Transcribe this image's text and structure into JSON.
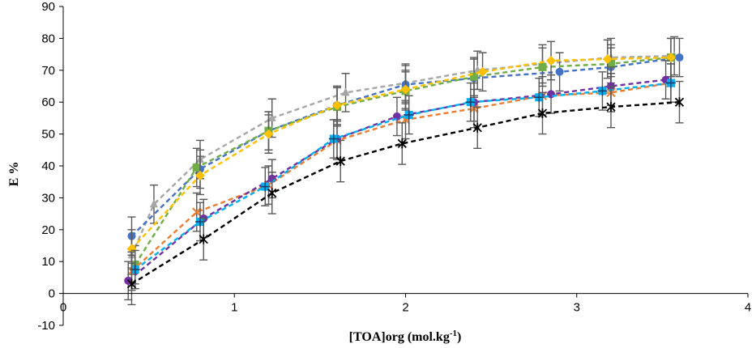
{
  "chart_data": {
    "type": "scatter",
    "xlabel": "[TOA]org (mol.kg",
    "xlabel_sup": "-1",
    "xlabel_close": ")",
    "ylabel": "E %",
    "xlim": [
      0,
      4
    ],
    "ylim": [
      -10,
      90
    ],
    "xticks": [
      0,
      1,
      2,
      3,
      4
    ],
    "yticks": [
      -10,
      0,
      10,
      20,
      30,
      40,
      50,
      60,
      70,
      80,
      90
    ],
    "grid": false,
    "legend": "none",
    "error_bar_color": "#595959",
    "series": [
      {
        "color": "#a6a6a6",
        "marker": "triangle",
        "x": [
          0.4,
          0.53,
          0.8,
          1.22,
          1.65,
          2.0,
          2.42,
          2.8,
          3.2,
          3.57
        ],
        "y": [
          12,
          28,
          42,
          55,
          63,
          66,
          70,
          72,
          74,
          74.5
        ],
        "err": 6
      },
      {
        "color": "#4472c4",
        "marker": "circle",
        "x": [
          0.4,
          0.8,
          1.2,
          1.6,
          2.0,
          2.4,
          2.9,
          3.2,
          3.6
        ],
        "y": [
          18,
          39,
          51,
          59,
          65.5,
          67.5,
          69.5,
          71,
          74
        ],
        "err": 6
      },
      {
        "color": "#70ad47",
        "marker": "square",
        "x": [
          0.42,
          0.78,
          1.2,
          1.6,
          2.0,
          2.4,
          2.8,
          3.2,
          3.55
        ],
        "y": [
          9,
          39.5,
          51,
          58.5,
          63.5,
          68,
          71,
          72,
          74
        ],
        "err": 6
      },
      {
        "color": "#ffc000",
        "marker": "diamond",
        "x": [
          0.4,
          0.8,
          1.2,
          1.6,
          2.0,
          2.45,
          2.85,
          3.18,
          3.55
        ],
        "y": [
          14,
          37,
          50,
          59,
          64,
          69.5,
          73,
          73.5,
          74
        ],
        "err": 6
      },
      {
        "color": "#ed7d31",
        "marker": "x",
        "x": [
          0.4,
          0.78,
          1.2,
          1.6,
          2.0,
          2.4,
          2.8,
          3.2,
          3.55
        ],
        "y": [
          7,
          25.5,
          34,
          48,
          54.5,
          58,
          62,
          63,
          66
        ],
        "err": 6
      },
      {
        "color": "#7030a0",
        "marker": "circle",
        "x": [
          0.38,
          0.82,
          1.22,
          1.6,
          1.95,
          2.4,
          2.85,
          3.2,
          3.52
        ],
        "y": [
          4,
          23.5,
          36,
          48.5,
          55.5,
          60,
          62.5,
          65,
          67
        ],
        "err": 6
      },
      {
        "color": "#00b0f0",
        "marker": "square-plus",
        "x": [
          0.42,
          0.8,
          1.18,
          1.58,
          2.02,
          2.38,
          2.78,
          3.15,
          3.55
        ],
        "y": [
          7.5,
          22.5,
          33.5,
          48.5,
          56,
          60,
          61.5,
          63.5,
          66
        ],
        "err": 6
      },
      {
        "color": "#000000",
        "marker": "star",
        "x": [
          0.4,
          0.82,
          1.22,
          1.62,
          1.98,
          2.42,
          2.8,
          3.2,
          3.6
        ],
        "y": [
          3,
          17,
          31.5,
          41.5,
          47,
          52,
          56.5,
          58.5,
          60
        ],
        "err": 6.5
      }
    ]
  }
}
